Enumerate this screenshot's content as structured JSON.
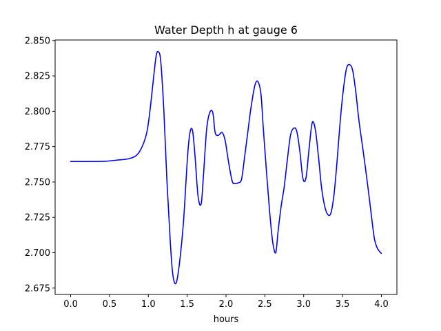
{
  "chart_data": {
    "type": "line",
    "title": "Water Depth h at gauge 6",
    "xlabel": "hours",
    "ylabel": "",
    "xlim": [
      -0.2,
      4.2
    ],
    "ylim": [
      2.6705,
      2.8504
    ],
    "xticks": [
      0.0,
      0.5,
      1.0,
      1.5,
      2.0,
      2.5,
      3.0,
      3.5,
      4.0
    ],
    "xtick_labels": [
      "0.0",
      "0.5",
      "1.0",
      "1.5",
      "2.0",
      "2.5",
      "3.0",
      "3.5",
      "4.0"
    ],
    "yticks": [
      2.675,
      2.7,
      2.725,
      2.75,
      2.775,
      2.8,
      2.825,
      2.85
    ],
    "ytick_labels": [
      "2.675",
      "2.700",
      "2.725",
      "2.750",
      "2.775",
      "2.800",
      "2.825",
      "2.850"
    ],
    "grid": false,
    "legend": "none",
    "series": [
      {
        "color": "#0000ff",
        "x": [
          0.0,
          0.2,
          0.45,
          0.6,
          0.75,
          0.85,
          0.92,
          0.98,
          1.02,
          1.06,
          1.1,
          1.13,
          1.16,
          1.2,
          1.24,
          1.28,
          1.31,
          1.34,
          1.37,
          1.41,
          1.45,
          1.48,
          1.51,
          1.54,
          1.57,
          1.6,
          1.64,
          1.68,
          1.71,
          1.75,
          1.79,
          1.83,
          1.86,
          1.9,
          1.95,
          1.99,
          2.03,
          2.08,
          2.12,
          2.16,
          2.2,
          2.24,
          2.28,
          2.32,
          2.37,
          2.41,
          2.45,
          2.48,
          2.52,
          2.56,
          2.6,
          2.64,
          2.67,
          2.71,
          2.75,
          2.79,
          2.83,
          2.87,
          2.91,
          2.95,
          2.99,
          3.03,
          3.07,
          3.11,
          3.15,
          3.19,
          3.23,
          3.27,
          3.31,
          3.35,
          3.39,
          3.43,
          3.47,
          3.51,
          3.55,
          3.59,
          3.63,
          3.67,
          3.71,
          3.75,
          3.79,
          3.83,
          3.87,
          3.91,
          3.95,
          4.0
        ],
        "y": [
          2.7645,
          2.7645,
          2.7647,
          2.7655,
          2.7665,
          2.769,
          2.775,
          2.785,
          2.8,
          2.82,
          2.839,
          2.842,
          2.835,
          2.8,
          2.75,
          2.71,
          2.687,
          2.6785,
          2.681,
          2.697,
          2.72,
          2.746,
          2.772,
          2.786,
          2.786,
          2.769,
          2.74,
          2.7345,
          2.755,
          2.787,
          2.799,
          2.799,
          2.785,
          2.783,
          2.785,
          2.779,
          2.765,
          2.7505,
          2.749,
          2.7495,
          2.752,
          2.768,
          2.785,
          2.802,
          2.818,
          2.821,
          2.812,
          2.788,
          2.758,
          2.73,
          2.708,
          2.7,
          2.715,
          2.733,
          2.747,
          2.766,
          2.783,
          2.788,
          2.786,
          2.772,
          2.7525,
          2.753,
          2.774,
          2.792,
          2.787,
          2.768,
          2.746,
          2.733,
          2.727,
          2.728,
          2.741,
          2.765,
          2.793,
          2.815,
          2.83,
          2.833,
          2.829,
          2.814,
          2.794,
          2.778,
          2.762,
          2.745,
          2.727,
          2.71,
          2.703,
          2.6995
        ]
      }
    ]
  }
}
